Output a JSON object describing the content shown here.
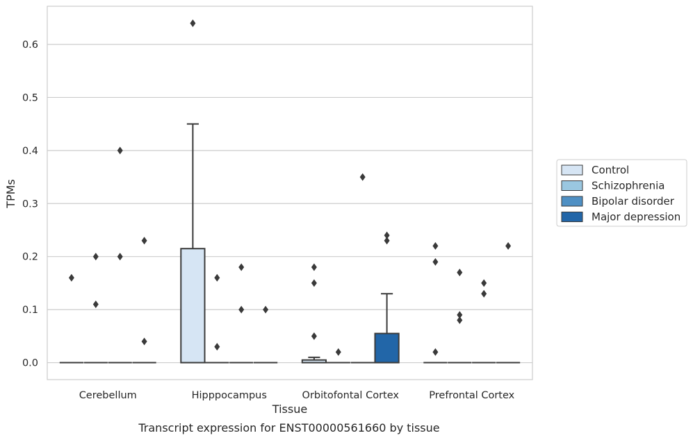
{
  "chart_data": {
    "type": "box",
    "caption": "Transcript expression for ENST00000561660 by tissue",
    "xlabel": "Tissue",
    "ylabel": "TPMs",
    "ylim": [
      -0.032,
      0.672
    ],
    "yticks": [
      0.0,
      0.1,
      0.2,
      0.3,
      0.4,
      0.5,
      0.6
    ],
    "ytick_labels": [
      "0.0",
      "0.1",
      "0.2",
      "0.3",
      "0.4",
      "0.5",
      "0.6"
    ],
    "grid": "horizontal",
    "legend_position": "right-outside",
    "categories": [
      "Cerebellum",
      "Hipppocampus",
      "Orbitofontal Cortex",
      "Prefrontal Cortex"
    ],
    "series": [
      {
        "name": "Control",
        "color": "#d6e5f4",
        "boxes": [
          {
            "q1": 0,
            "median": 0,
            "q3": 0,
            "whisker_low": 0,
            "whisker_high": 0,
            "outliers": [
              0.16
            ]
          },
          {
            "q1": 0,
            "median": 0,
            "q3": 0.215,
            "whisker_low": 0,
            "whisker_high": 0.45,
            "outliers": [
              0.64
            ]
          },
          {
            "q1": 0,
            "median": 0,
            "q3": 0.005,
            "whisker_low": 0,
            "whisker_high": 0.01,
            "outliers": [
              0.18,
              0.15,
              0.05
            ]
          },
          {
            "q1": 0,
            "median": 0,
            "q3": 0,
            "whisker_low": 0,
            "whisker_high": 0,
            "outliers": [
              0.22,
              0.19,
              0.02
            ]
          }
        ]
      },
      {
        "name": "Schizophrenia",
        "color": "#9ac7e0",
        "boxes": [
          {
            "q1": 0,
            "median": 0,
            "q3": 0,
            "whisker_low": 0,
            "whisker_high": 0,
            "outliers": [
              0.2,
              0.11
            ]
          },
          {
            "q1": 0,
            "median": 0,
            "q3": 0,
            "whisker_low": 0,
            "whisker_high": 0,
            "outliers": [
              0.16,
              0.03
            ]
          },
          {
            "q1": 0,
            "median": 0,
            "q3": 0,
            "whisker_low": 0,
            "whisker_high": 0,
            "outliers": [
              0.02
            ]
          },
          {
            "q1": 0,
            "median": 0,
            "q3": 0,
            "whisker_low": 0,
            "whisker_high": 0,
            "outliers": [
              0.17,
              0.09,
              0.08
            ]
          }
        ]
      },
      {
        "name": "Bipolar disorder",
        "color": "#4f90c4",
        "boxes": [
          {
            "q1": 0,
            "median": 0,
            "q3": 0,
            "whisker_low": 0,
            "whisker_high": 0,
            "outliers": [
              0.4,
              0.2
            ]
          },
          {
            "q1": 0,
            "median": 0,
            "q3": 0,
            "whisker_low": 0,
            "whisker_high": 0,
            "outliers": [
              0.18,
              0.1
            ]
          },
          {
            "q1": 0,
            "median": 0,
            "q3": 0,
            "whisker_low": 0,
            "whisker_high": 0,
            "outliers": [
              0.35
            ]
          },
          {
            "q1": 0,
            "median": 0,
            "q3": 0,
            "whisker_low": 0,
            "whisker_high": 0,
            "outliers": [
              0.15,
              0.13
            ]
          }
        ]
      },
      {
        "name": "Major depression",
        "color": "#2266a8",
        "boxes": [
          {
            "q1": 0,
            "median": 0,
            "q3": 0,
            "whisker_low": 0,
            "whisker_high": 0,
            "outliers": [
              0.23,
              0.04
            ]
          },
          {
            "q1": 0,
            "median": 0,
            "q3": 0,
            "whisker_low": 0,
            "whisker_high": 0,
            "outliers": [
              0.1
            ]
          },
          {
            "q1": 0,
            "median": 0,
            "q3": 0.055,
            "whisker_low": 0,
            "whisker_high": 0.13,
            "outliers": [
              0.24,
              0.23
            ]
          },
          {
            "q1": 0,
            "median": 0,
            "q3": 0,
            "whisker_low": 0,
            "whisker_high": 0,
            "outliers": [
              0.22
            ]
          }
        ]
      }
    ]
  }
}
